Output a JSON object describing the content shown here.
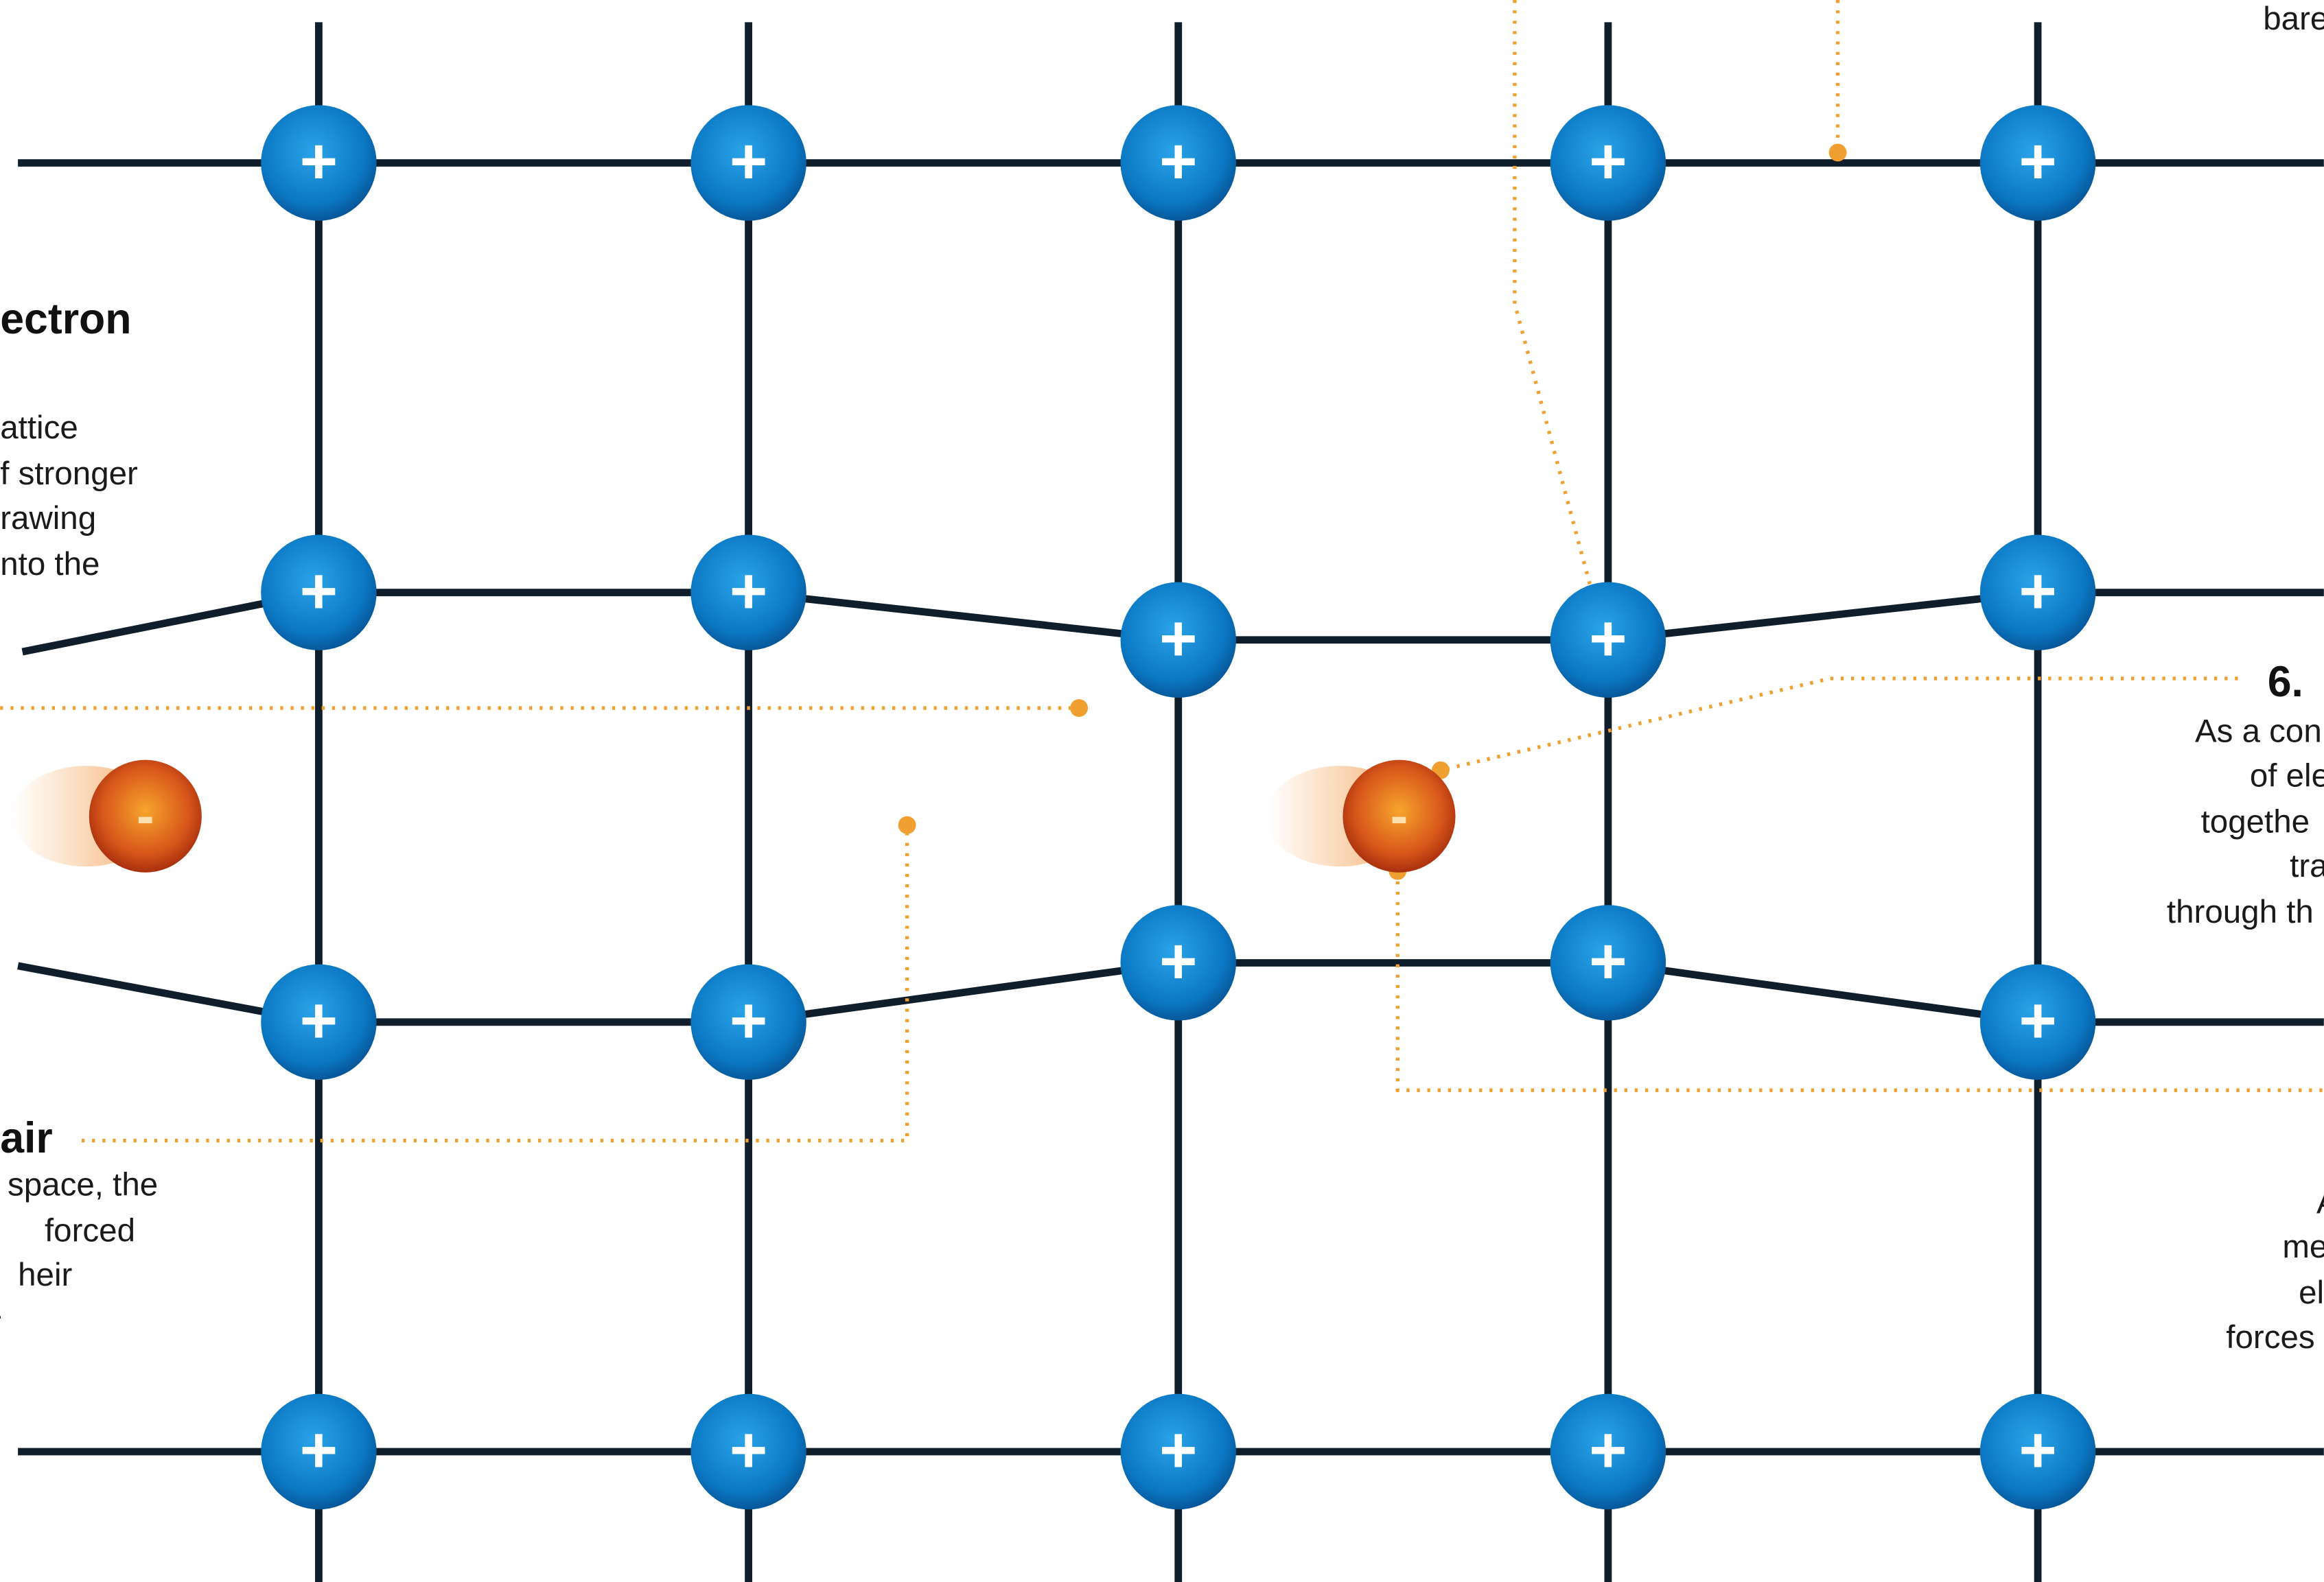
{
  "ion_label": "+",
  "electron_label": "-",
  "top_right": {
    "line_0": "bare"
  },
  "left_top": {
    "heading": "ectron",
    "lines": [
      "attice",
      "f stronger",
      "rawing",
      "nto the"
    ]
  },
  "right_middle": {
    "heading": "6.",
    "lines": [
      "As a con",
      "of ele",
      "togethe",
      "tra",
      "through th"
    ]
  },
  "left_bottom": {
    "heading": "air",
    "lines": [
      "space, the",
      "forced",
      "heir",
      "-"
    ]
  },
  "right_bottom": {
    "lines": [
      "A",
      "me",
      "el",
      "forces"
    ]
  }
}
